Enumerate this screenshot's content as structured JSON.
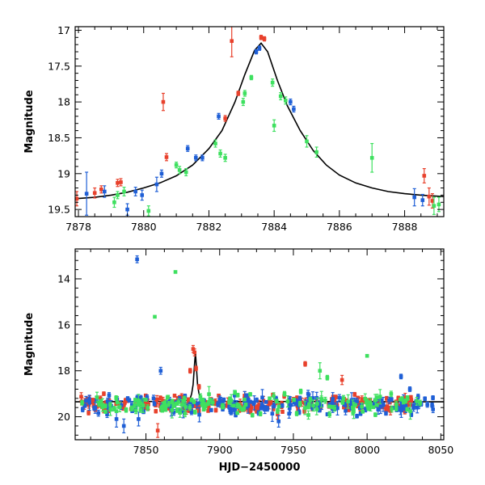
{
  "chart_data": [
    {
      "type": "scatter",
      "ylabel": "Magnitude",
      "xlim": [
        7877.9,
        7889.2
      ],
      "ylim": [
        19.6,
        16.95
      ],
      "yinverted": true,
      "xticks": [
        7878,
        7880,
        7882,
        7884,
        7886,
        7888
      ],
      "xtick_labels": [
        "7878",
        "7880",
        "7882",
        "7884",
        "7886",
        "7888"
      ],
      "yticks": [
        17,
        17.5,
        18,
        18.5,
        19,
        19.5
      ],
      "ytick_labels": [
        "17",
        "17.5",
        "18",
        "18.5",
        "19",
        "19.5"
      ],
      "model": {
        "x": [
          7877.9,
          7878.5,
          7879,
          7879.5,
          7880,
          7880.5,
          7881,
          7881.5,
          7882,
          7882.4,
          7882.8,
          7883.1,
          7883.4,
          7883.6,
          7883.8,
          7884.1,
          7884.4,
          7884.8,
          7885.2,
          7885.6,
          7886,
          7886.5,
          7887,
          7887.5,
          7888,
          7888.5,
          7889.2
        ],
        "y": [
          19.35,
          19.33,
          19.3,
          19.26,
          19.2,
          19.13,
          19.03,
          18.88,
          18.65,
          18.4,
          18.0,
          17.62,
          17.28,
          17.18,
          17.3,
          17.7,
          18.05,
          18.4,
          18.68,
          18.88,
          19.02,
          19.13,
          19.2,
          19.25,
          19.28,
          19.3,
          19.32
        ]
      },
      "series": [
        {
          "color": "#e8412c",
          "x": [
            7877.95,
            7878.5,
            7878.7,
            7879.2,
            7879.3,
            7880.6,
            7880.7,
            7882.5,
            7882.7,
            7882.9,
            7883.6,
            7883.7,
            7888.6,
            7888.75,
            7888.85
          ],
          "y": [
            19.35,
            19.27,
            19.22,
            19.13,
            19.12,
            18.0,
            18.77,
            18.23,
            17.15,
            17.88,
            17.1,
            17.12,
            19.03,
            19.32,
            19.38
          ],
          "err": [
            0.1,
            0.07,
            0.05,
            0.05,
            0.05,
            0.12,
            0.05,
            0.04,
            0.22,
            0.03,
            0.03,
            0.03,
            0.1,
            0.12,
            0.1
          ]
        },
        {
          "color": "#1f5fd6",
          "x": [
            7878.25,
            7878.8,
            7879.5,
            7879.75,
            7879.95,
            7880.4,
            7880.55,
            7881.35,
            7881.6,
            7881.8,
            7882.3,
            7883.45,
            7883.55,
            7884.5,
            7884.6,
            7888.3,
            7888.55
          ],
          "y": [
            19.28,
            19.25,
            19.5,
            19.25,
            19.3,
            19.15,
            19.0,
            18.65,
            18.78,
            18.78,
            18.2,
            17.3,
            17.25,
            18.0,
            18.1,
            19.33,
            19.37
          ],
          "err": [
            0.3,
            0.08,
            0.08,
            0.06,
            0.07,
            0.1,
            0.05,
            0.04,
            0.04,
            0.04,
            0.04,
            0.03,
            0.03,
            0.04,
            0.04,
            0.12,
            0.08
          ]
        },
        {
          "color": "#3ee05f",
          "x": [
            7879.1,
            7879.2,
            7879.4,
            7880.15,
            7881.0,
            7881.1,
            7881.3,
            7882.2,
            7882.35,
            7882.5,
            7883.05,
            7883.1,
            7883.3,
            7883.95,
            7884.0,
            7884.2,
            7884.35,
            7885.0,
            7885.3,
            7887.0,
            7888.9,
            7889.05
          ],
          "y": [
            19.4,
            19.3,
            19.25,
            19.52,
            18.88,
            18.95,
            18.98,
            18.58,
            18.72,
            18.78,
            18.0,
            17.88,
            17.66,
            17.73,
            18.33,
            17.92,
            17.98,
            18.55,
            18.7,
            18.78,
            19.45,
            19.43
          ],
          "err": [
            0.07,
            0.05,
            0.06,
            0.07,
            0.04,
            0.05,
            0.05,
            0.05,
            0.05,
            0.05,
            0.05,
            0.04,
            0.03,
            0.05,
            0.08,
            0.05,
            0.05,
            0.08,
            0.07,
            0.2,
            0.12,
            0.1
          ]
        }
      ]
    },
    {
      "type": "scatter",
      "xlabel": "HJD−2450000",
      "ylabel": "Magnitude",
      "xlim": [
        7802,
        8052
      ],
      "ylim": [
        21.0,
        12.7
      ],
      "yinverted": true,
      "xticks": [
        7850,
        7900,
        7950,
        8000,
        8050
      ],
      "xtick_labels": [
        "7850",
        "7900",
        "7950",
        "8000",
        "8050"
      ],
      "yticks": [
        14,
        16,
        18,
        20
      ],
      "ytick_labels": [
        "14",
        "16",
        "18",
        "20"
      ],
      "baseline": {
        "x": [
          7802,
          7875,
          7878,
          7880,
          7881,
          7882,
          7883,
          7883.6,
          7884.2,
          7885,
          7886,
          7888,
          7892,
          8052
        ],
        "y": [
          19.35,
          19.33,
          19.28,
          19.2,
          19.0,
          18.6,
          17.7,
          17.2,
          17.8,
          18.6,
          19.0,
          19.25,
          19.33,
          19.35
        ]
      },
      "series": [
        {
          "color": "#e8412c",
          "x": [
            7858,
            7882,
            7883,
            7884,
            7880,
            7886,
            7958,
            7983
          ],
          "y": [
            20.6,
            17.05,
            17.2,
            17.9,
            18.0,
            18.7,
            17.7,
            18.4
          ],
          "err": [
            0.3,
            0.15,
            0.15,
            0.1,
            0.1,
            0.1,
            0.1,
            0.2
          ],
          "band": {
            "start": 7806,
            "end": 8030,
            "center": 19.45,
            "spread": 0.28,
            "count": 260,
            "seed": 11,
            "errmin": 0.05,
            "errmax": 0.22
          }
        },
        {
          "color": "#1f5fd6",
          "x": [
            7844,
            7860,
            7835,
            7845,
            7940,
            7960,
            7830,
            8023,
            8029
          ],
          "y": [
            13.15,
            18.0,
            20.4,
            20.1,
            20.2,
            19.0,
            20.1,
            18.25,
            18.8
          ],
          "err": [
            0.15,
            0.15,
            0.3,
            0.3,
            0.25,
            0.15,
            0.35,
            0.1,
            0.1
          ],
          "band": {
            "start": 7806,
            "end": 8045,
            "center": 19.5,
            "spread": 0.32,
            "count": 200,
            "seed": 23,
            "errmin": 0.06,
            "errmax": 0.35
          }
        },
        {
          "color": "#3ee05f",
          "x": [
            7856,
            7870,
            7968,
            8000,
            7973,
            7944,
            7955
          ],
          "y": [
            15.65,
            13.7,
            18.0,
            17.35,
            18.3,
            19.0,
            18.9
          ],
          "err": [
            0.0,
            0.0,
            0.35,
            0.0,
            0.1,
            0.1,
            0.1
          ],
          "band": {
            "start": 7806,
            "end": 8040,
            "center": 19.45,
            "spread": 0.35,
            "count": 150,
            "seed": 37,
            "errmin": 0.05,
            "errmax": 0.35
          }
        }
      ]
    }
  ]
}
